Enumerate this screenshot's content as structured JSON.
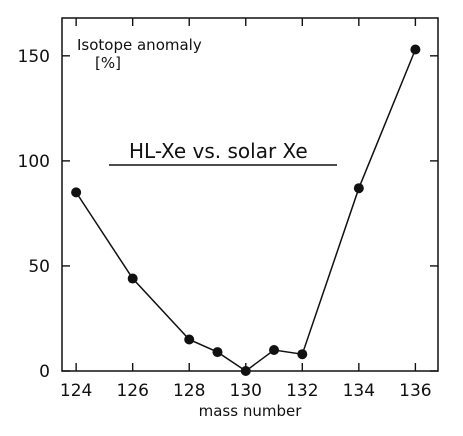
{
  "chart_data": {
    "type": "line",
    "title": "",
    "xlabel": "mass number",
    "ylabel": "Isotope anomaly",
    "ylabel_unit": "[%]",
    "annotation": "HL-Xe vs. solar Xe",
    "xlim": [
      123.5,
      136.8
    ],
    "ylim": [
      0,
      168
    ],
    "x_ticks": [
      124,
      126,
      128,
      130,
      132,
      134,
      136
    ],
    "y_ticks": [
      0,
      50,
      100,
      150
    ],
    "grid": false,
    "legend": "none",
    "series": [
      {
        "x": [
          124,
          126,
          128,
          129,
          130,
          131,
          132,
          134,
          136
        ],
        "y": [
          85,
          44,
          15,
          9,
          0,
          10,
          8,
          87,
          153
        ]
      }
    ]
  }
}
